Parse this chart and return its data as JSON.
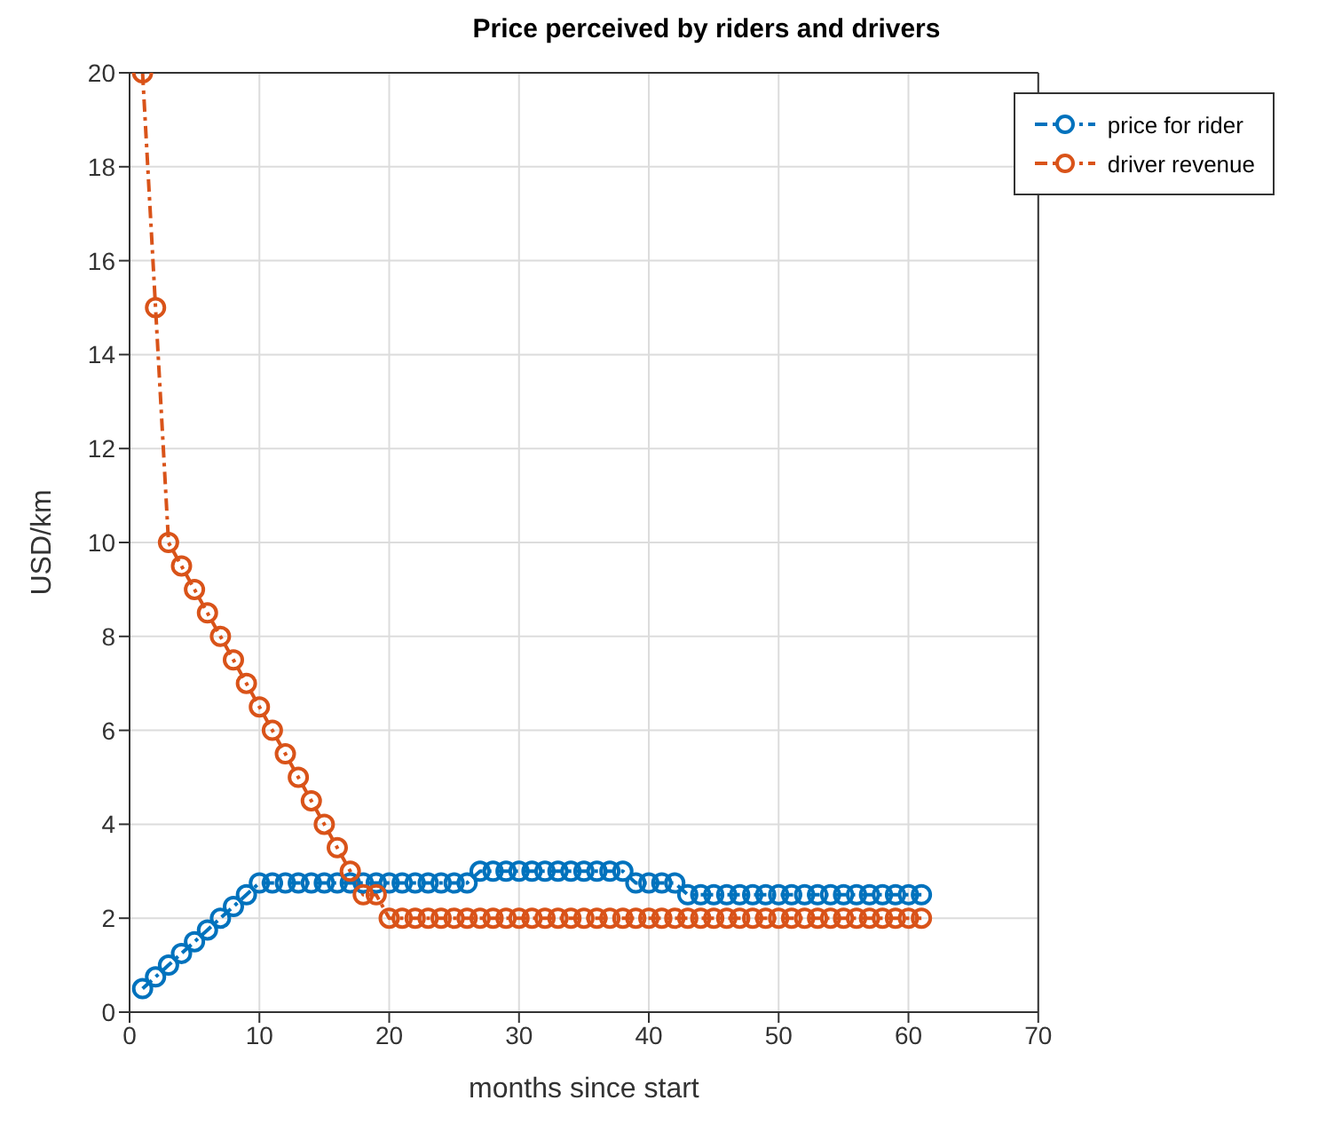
{
  "chart_data": {
    "type": "line",
    "title": "Price perceived by riders and drivers",
    "xlabel": "months since start",
    "ylabel": "USD/km",
    "x": [
      1,
      2,
      3,
      4,
      5,
      6,
      7,
      8,
      9,
      10,
      11,
      12,
      13,
      14,
      15,
      16,
      17,
      18,
      19,
      20,
      21,
      22,
      23,
      24,
      25,
      26,
      27,
      28,
      29,
      30,
      31,
      32,
      33,
      34,
      35,
      36,
      37,
      38,
      39,
      40,
      41,
      42,
      43,
      44,
      45,
      46,
      47,
      48,
      49,
      50,
      51,
      52,
      53,
      54,
      55,
      56,
      57,
      58,
      59,
      60,
      61
    ],
    "series": [
      {
        "name": "price for rider",
        "color": "#0072bd",
        "values": [
          0.5,
          0.75,
          1,
          1.25,
          1.5,
          1.75,
          2,
          2.25,
          2.5,
          2.75,
          2.75,
          2.75,
          2.75,
          2.75,
          2.75,
          2.75,
          2.75,
          2.75,
          2.75,
          2.75,
          2.75,
          2.75,
          2.75,
          2.75,
          2.75,
          2.75,
          3,
          3,
          3,
          3,
          3,
          3,
          3,
          3,
          3,
          3,
          3,
          3,
          2.75,
          2.75,
          2.75,
          2.75,
          2.5,
          2.5,
          2.5,
          2.5,
          2.5,
          2.5,
          2.5,
          2.5,
          2.5,
          2.5,
          2.5,
          2.5,
          2.5,
          2.5,
          2.5,
          2.5,
          2.5,
          2.5,
          2.5
        ]
      },
      {
        "name": "driver revenue",
        "color": "#d95319",
        "values": [
          20,
          15,
          10,
          9.5,
          9,
          8.5,
          8,
          7.5,
          7,
          6.5,
          6,
          5.5,
          5,
          4.5,
          4,
          3.5,
          3,
          2.5,
          2.5,
          2,
          2,
          2,
          2,
          2,
          2,
          2,
          2,
          2,
          2,
          2,
          2,
          2,
          2,
          2,
          2,
          2,
          2,
          2,
          2,
          2,
          2,
          2,
          2,
          2,
          2,
          2,
          2,
          2,
          2,
          2,
          2,
          2,
          2,
          2,
          2,
          2,
          2,
          2,
          2,
          2,
          2
        ]
      }
    ],
    "xlim": [
      0,
      70
    ],
    "xticks": [
      0,
      10,
      20,
      30,
      40,
      50,
      60,
      70
    ],
    "ylim": [
      0,
      20
    ],
    "yticks": [
      0,
      2,
      4,
      6,
      8,
      10,
      12,
      14,
      16,
      18,
      20
    ],
    "grid": true,
    "legend": "top right",
    "marker": "circle",
    "line_style": "dashed"
  }
}
